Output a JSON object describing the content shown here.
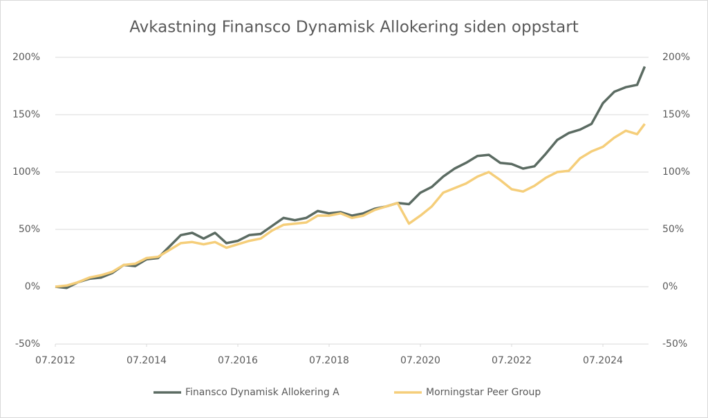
{
  "chart_data": {
    "type": "line",
    "title": "Avkastning Finansco Dynamisk Allokering siden oppstart",
    "x": [
      "07.2012",
      "10.2012",
      "01.2013",
      "04.2013",
      "07.2013",
      "10.2013",
      "01.2014",
      "04.2014",
      "07.2014",
      "10.2014",
      "01.2015",
      "04.2015",
      "07.2015",
      "10.2015",
      "01.2016",
      "04.2016",
      "07.2016",
      "10.2016",
      "01.2017",
      "04.2017",
      "07.2017",
      "10.2017",
      "01.2018",
      "04.2018",
      "07.2018",
      "10.2018",
      "01.2019",
      "04.2019",
      "07.2019",
      "10.2019",
      "01.2020",
      "04.2020",
      "07.2020",
      "10.2020",
      "01.2021",
      "04.2021",
      "07.2021",
      "10.2021",
      "01.2022",
      "04.2022",
      "07.2022",
      "10.2022",
      "01.2023",
      "04.2023",
      "07.2023",
      "10.2023",
      "01.2024",
      "04.2024",
      "07.2024",
      "10.2024",
      "01.2025",
      "04.2025",
      "06.2025"
    ],
    "series": [
      {
        "name": "Finansco Dynamisk Allokering A",
        "color": "#5b6b62",
        "values": [
          0,
          -1,
          4,
          7,
          8,
          12,
          19,
          18,
          24,
          25,
          35,
          45,
          47,
          42,
          47,
          38,
          40,
          45,
          46,
          53,
          60,
          58,
          60,
          66,
          64,
          65,
          62,
          64,
          68,
          70,
          73,
          72,
          82,
          87,
          96,
          103,
          108,
          114,
          115,
          108,
          107,
          103,
          105,
          116,
          128,
          134,
          137,
          142,
          160,
          170,
          174,
          176,
          192
        ]
      },
      {
        "name": "Morningstar Peer Group",
        "color": "#f5ce7a",
        "values": [
          0,
          1,
          4,
          8,
          10,
          13,
          19,
          20,
          25,
          26,
          32,
          38,
          39,
          37,
          39,
          34,
          37,
          40,
          42,
          49,
          54,
          55,
          56,
          62,
          62,
          64,
          60,
          62,
          67,
          70,
          73,
          55,
          62,
          70,
          82,
          86,
          90,
          96,
          100,
          93,
          85,
          83,
          88,
          95,
          100,
          101,
          112,
          118,
          122,
          130,
          136,
          133,
          142
        ]
      }
    ],
    "xlim": [
      "07.2012",
      "07.2025"
    ],
    "xticks": [
      "07.2012",
      "07.2014",
      "07.2016",
      "07.2018",
      "07.2020",
      "07.2022",
      "07.2024"
    ],
    "ylim": [
      -50,
      200
    ],
    "yticks": [
      {
        "value": -50,
        "label": "-50%"
      },
      {
        "value": 0,
        "label": "0%"
      },
      {
        "value": 50,
        "label": "50%"
      },
      {
        "value": 100,
        "label": "100%"
      },
      {
        "value": 150,
        "label": "150%"
      },
      {
        "value": 200,
        "label": "200%"
      }
    ],
    "y2lim": [
      -50,
      200
    ],
    "y2ticks": [
      {
        "value": -50,
        "label": "-50%"
      },
      {
        "value": 0,
        "label": "0%"
      },
      {
        "value": 50,
        "label": "50%"
      },
      {
        "value": 100,
        "label": "100%"
      },
      {
        "value": 150,
        "label": "150%"
      },
      {
        "value": 200,
        "label": "200%"
      }
    ],
    "grid": true,
    "legend": "bottom"
  }
}
